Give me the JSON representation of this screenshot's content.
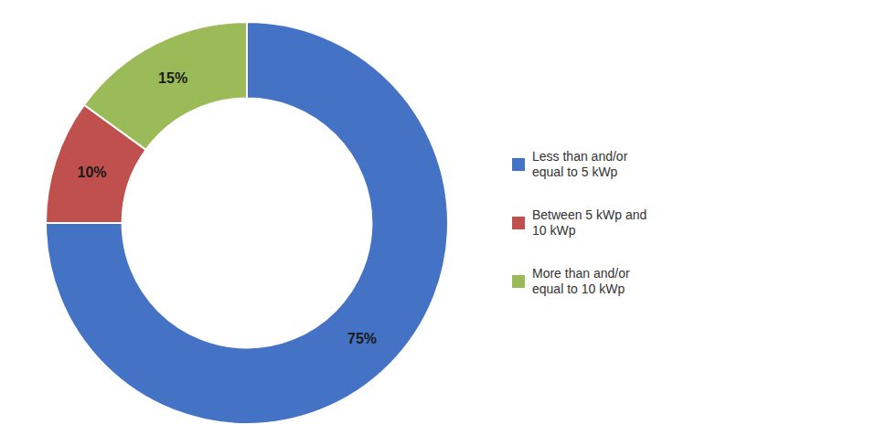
{
  "chart_data": {
    "type": "donut",
    "categories": [
      "Less than and/or\nequal to 5 kWp",
      "Between 5 kWp and\n10 kWp",
      "More than and/or\nequal to 10 kWp"
    ],
    "values": [
      75,
      10,
      15
    ],
    "value_labels": [
      "75%",
      "10%",
      "15%"
    ],
    "colors": [
      "#4472C4",
      "#C0504D",
      "#9BBB59"
    ],
    "data_labels": true,
    "legend": "right"
  }
}
